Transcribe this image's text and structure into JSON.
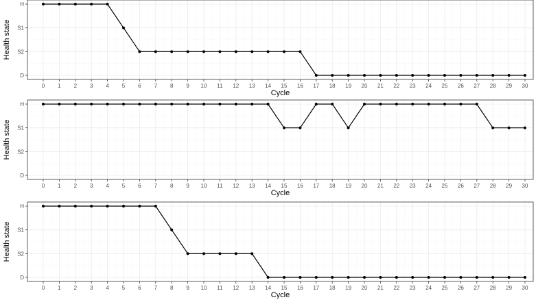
{
  "chart_data": [
    {
      "type": "line",
      "xlabel": "Cycle",
      "ylabel": "Health state",
      "y_categories": [
        "D",
        "S2",
        "S1",
        "H"
      ],
      "x": [
        0,
        1,
        2,
        3,
        4,
        5,
        6,
        7,
        8,
        9,
        10,
        11,
        12,
        13,
        14,
        15,
        16,
        17,
        18,
        19,
        20,
        21,
        22,
        23,
        24,
        25,
        26,
        27,
        28,
        29,
        30
      ],
      "values": [
        "H",
        "H",
        "H",
        "H",
        "H",
        "S1",
        "S2",
        "S2",
        "S2",
        "S2",
        "S2",
        "S2",
        "S2",
        "S2",
        "S2",
        "S2",
        "S2",
        "D",
        "D",
        "D",
        "D",
        "D",
        "D",
        "D",
        "D",
        "D",
        "D",
        "D",
        "D",
        "D",
        "D"
      ],
      "xlim": [
        0,
        30
      ],
      "grid": true,
      "line_color": "#000000"
    },
    {
      "type": "line",
      "xlabel": "Cycle",
      "ylabel": "Health state",
      "y_categories": [
        "D",
        "S2",
        "S1",
        "H"
      ],
      "x": [
        0,
        1,
        2,
        3,
        4,
        5,
        6,
        7,
        8,
        9,
        10,
        11,
        12,
        13,
        14,
        15,
        16,
        17,
        18,
        19,
        20,
        21,
        22,
        23,
        24,
        25,
        26,
        27,
        28,
        29,
        30
      ],
      "values": [
        "H",
        "H",
        "H",
        "H",
        "H",
        "H",
        "H",
        "H",
        "H",
        "H",
        "H",
        "H",
        "H",
        "H",
        "H",
        "S1",
        "S1",
        "H",
        "H",
        "S1",
        "H",
        "H",
        "H",
        "H",
        "H",
        "H",
        "H",
        "H",
        "S1",
        "S1",
        "S1"
      ],
      "xlim": [
        0,
        30
      ],
      "grid": true,
      "line_color": "#000000"
    },
    {
      "type": "line",
      "xlabel": "Cycle",
      "ylabel": "Health state",
      "y_categories": [
        "D",
        "S2",
        "S1",
        "H"
      ],
      "x": [
        0,
        1,
        2,
        3,
        4,
        5,
        6,
        7,
        8,
        9,
        10,
        11,
        12,
        13,
        14,
        15,
        16,
        17,
        18,
        19,
        20,
        21,
        22,
        23,
        24,
        25,
        26,
        27,
        28,
        29,
        30
      ],
      "values": [
        "H",
        "H",
        "H",
        "H",
        "H",
        "H",
        "H",
        "H",
        "S1",
        "S2",
        "S2",
        "S2",
        "S2",
        "S2",
        "D",
        "D",
        "D",
        "D",
        "D",
        "D",
        "D",
        "D",
        "D",
        "D",
        "D",
        "D",
        "D",
        "D",
        "D",
        "D",
        "D"
      ],
      "xlim": [
        0,
        30
      ],
      "grid": true,
      "line_color": "#000000"
    }
  ]
}
